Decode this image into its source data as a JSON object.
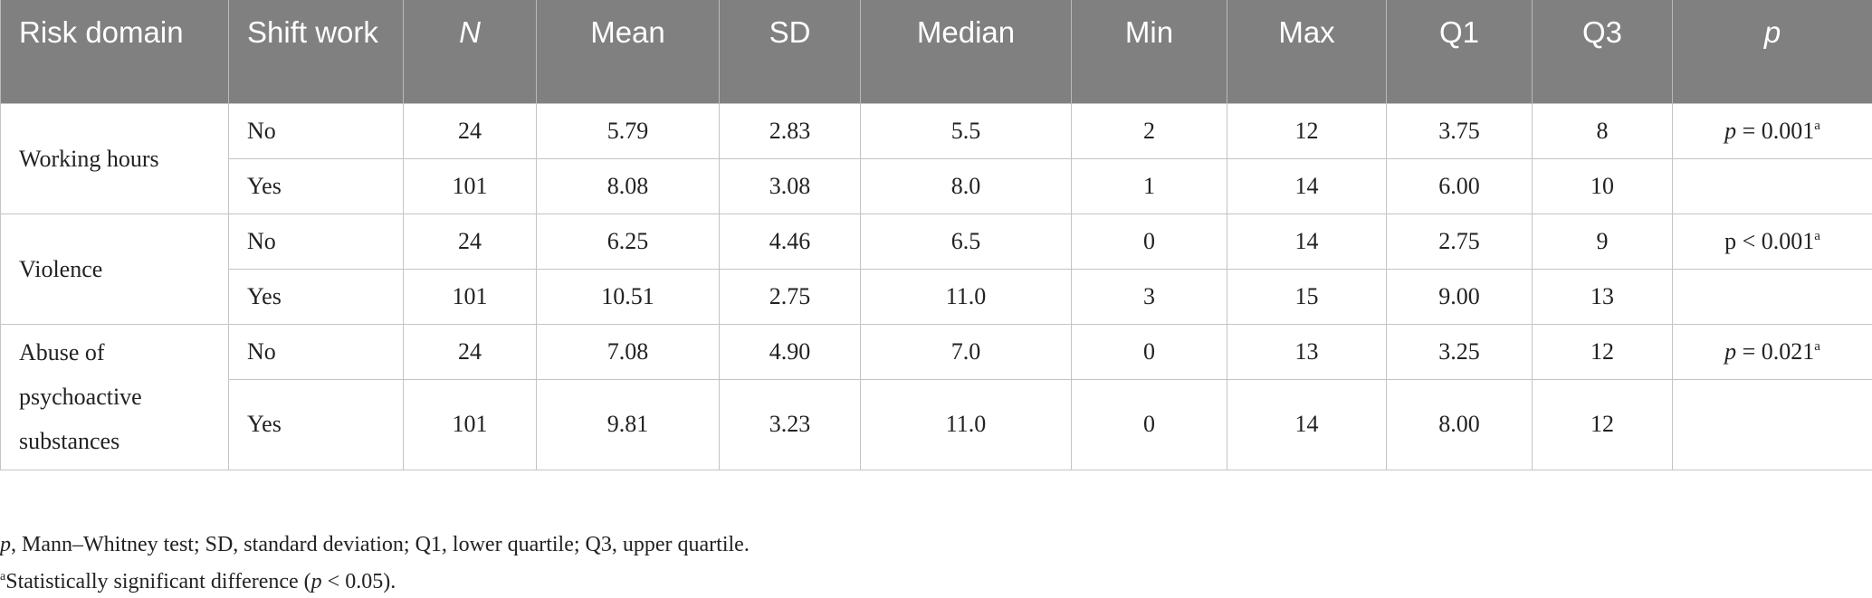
{
  "table": {
    "headers": [
      "Risk domain",
      "Shift work",
      "N",
      "Mean",
      "SD",
      "Median",
      "Min",
      "Max",
      "Q1",
      "Q3",
      "p"
    ],
    "groups": [
      {
        "domain": "Working hours",
        "rows": [
          {
            "shift": "No",
            "n": "24",
            "mean": "5.79",
            "sd": "2.83",
            "median": "5.5",
            "min": "2",
            "max": "12",
            "q1": "3.75",
            "q3": "8"
          },
          {
            "shift": "Yes",
            "n": "101",
            "mean": "8.08",
            "sd": "3.08",
            "median": "8.0",
            "min": "1",
            "max": "14",
            "q1": "6.00",
            "q3": "10"
          }
        ],
        "p_symbol": "p",
        "p_rest": " = 0.001",
        "p_note": "a"
      },
      {
        "domain": "Violence",
        "rows": [
          {
            "shift": "No",
            "n": "24",
            "mean": "6.25",
            "sd": "4.46",
            "median": "6.5",
            "min": "0",
            "max": "14",
            "q1": "2.75",
            "q3": "9"
          },
          {
            "shift": "Yes",
            "n": "101",
            "mean": "10.51",
            "sd": "2.75",
            "median": "11.0",
            "min": "3",
            "max": "15",
            "q1": "9.00",
            "q3": "13"
          }
        ],
        "p_symbol": "p",
        "p_rest": " < 0.001",
        "p_note": "a"
      },
      {
        "domain": "Abuse of psychoactive substances",
        "rows": [
          {
            "shift": "No",
            "n": "24",
            "mean": "7.08",
            "sd": "4.90",
            "median": "7.0",
            "min": "0",
            "max": "13",
            "q1": "3.25",
            "q3": "12"
          },
          {
            "shift": "Yes",
            "n": "101",
            "mean": "9.81",
            "sd": "3.23",
            "median": "11.0",
            "min": "0",
            "max": "14",
            "q1": "8.00",
            "q3": "12"
          }
        ],
        "p_symbol": "p",
        "p_rest": " = 0.021",
        "p_note": "a"
      }
    ]
  },
  "footnotes": {
    "line1_symbol": "p",
    "line1_text": ", Mann–Whitney test; SD, standard deviation; Q1, lower quartile; Q3, upper quartile.",
    "line2_mark": "a",
    "line2_text": "Statistically significant difference (",
    "line2_symbol": "p",
    "line2_tail": " < 0.05)."
  }
}
